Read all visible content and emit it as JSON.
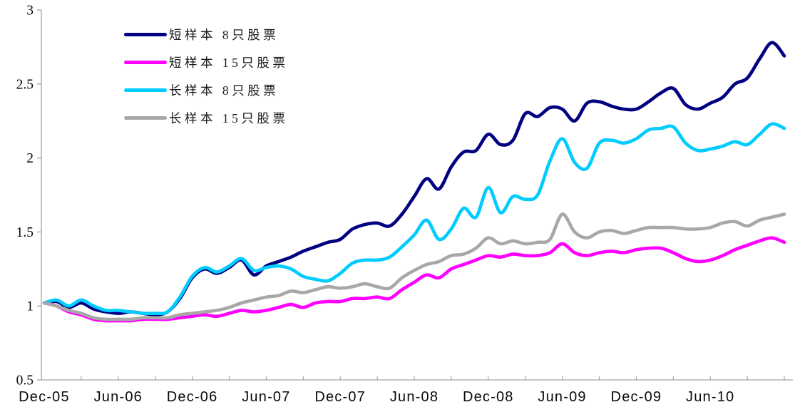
{
  "page": {
    "background": "#ffffff"
  },
  "chart_data": {
    "type": "line",
    "title": "",
    "xlabel": "",
    "ylabel": "",
    "grid": false,
    "legend_position": "top-left-inside",
    "axis_color": "#a3a3a3",
    "text_color": "#0a0a0a",
    "x_axis": {
      "tick_labels": [
        "Dec-05",
        "Jun-06",
        "Dec-06",
        "Jun-07",
        "Dec-07",
        "Jun-08",
        "Dec-08",
        "Jun-09",
        "Dec-09",
        "Jun-10"
      ],
      "label_every_months": 6,
      "minor_tick_every_months": 3,
      "values_start": "Dec-05",
      "values_frequency": "monthly"
    },
    "y_axis": {
      "tick_labels": [
        "0.5",
        "1",
        "1.5",
        "2",
        "2.5",
        "3"
      ],
      "min": 0.5,
      "max": 3,
      "step": 0.5
    },
    "series": [
      {
        "key": "short-8",
        "label": "短样本 8只股票",
        "color": "#000080",
        "values": [
          1.02,
          1.03,
          0.99,
          1.02,
          0.98,
          0.96,
          0.95,
          0.96,
          0.95,
          0.94,
          0.96,
          1.05,
          1.19,
          1.25,
          1.22,
          1.26,
          1.31,
          1.21,
          1.27,
          1.3,
          1.33,
          1.37,
          1.4,
          1.43,
          1.45,
          1.52,
          1.55,
          1.56,
          1.54,
          1.62,
          1.74,
          1.86,
          1.79,
          1.94,
          2.04,
          2.05,
          2.16,
          2.09,
          2.12,
          2.3,
          2.28,
          2.34,
          2.33,
          2.25,
          2.37,
          2.38,
          2.35,
          2.33,
          2.33,
          2.38,
          2.44,
          2.47,
          2.36,
          2.33,
          2.37,
          2.41,
          2.5,
          2.54,
          2.67,
          2.78,
          2.69
        ]
      },
      {
        "key": "short-15",
        "label": "短样本 15只股票",
        "color": "#FF00FF",
        "values": [
          1.02,
          1.0,
          0.96,
          0.94,
          0.91,
          0.9,
          0.9,
          0.9,
          0.91,
          0.91,
          0.91,
          0.92,
          0.93,
          0.94,
          0.93,
          0.95,
          0.97,
          0.96,
          0.97,
          0.99,
          1.01,
          0.99,
          1.02,
          1.03,
          1.03,
          1.05,
          1.05,
          1.06,
          1.05,
          1.11,
          1.16,
          1.21,
          1.19,
          1.25,
          1.28,
          1.31,
          1.34,
          1.33,
          1.35,
          1.34,
          1.34,
          1.36,
          1.42,
          1.36,
          1.34,
          1.36,
          1.37,
          1.36,
          1.38,
          1.39,
          1.39,
          1.36,
          1.32,
          1.3,
          1.31,
          1.34,
          1.38,
          1.41,
          1.44,
          1.46,
          1.43
        ]
      },
      {
        "key": "long-8",
        "label": "长样本 8只股票",
        "color": "#00CCFF",
        "values": [
          1.02,
          1.04,
          1.0,
          1.04,
          1.0,
          0.97,
          0.97,
          0.96,
          0.95,
          0.95,
          0.96,
          1.06,
          1.2,
          1.26,
          1.23,
          1.27,
          1.32,
          1.24,
          1.26,
          1.27,
          1.25,
          1.2,
          1.18,
          1.17,
          1.22,
          1.29,
          1.31,
          1.31,
          1.33,
          1.4,
          1.48,
          1.58,
          1.45,
          1.52,
          1.66,
          1.6,
          1.8,
          1.63,
          1.74,
          1.72,
          1.75,
          1.98,
          2.13,
          1.97,
          1.93,
          2.1,
          2.12,
          2.1,
          2.13,
          2.19,
          2.2,
          2.21,
          2.1,
          2.05,
          2.06,
          2.08,
          2.11,
          2.09,
          2.16,
          2.23,
          2.2
        ]
      },
      {
        "key": "long-15",
        "label": "长样本 15只股票",
        "color": "#A8A8A8",
        "values": [
          1.02,
          1.0,
          0.97,
          0.95,
          0.92,
          0.91,
          0.91,
          0.91,
          0.92,
          0.92,
          0.92,
          0.94,
          0.95,
          0.96,
          0.97,
          0.99,
          1.02,
          1.04,
          1.06,
          1.07,
          1.1,
          1.09,
          1.11,
          1.13,
          1.12,
          1.13,
          1.15,
          1.13,
          1.12,
          1.19,
          1.24,
          1.28,
          1.3,
          1.34,
          1.35,
          1.39,
          1.46,
          1.42,
          1.44,
          1.42,
          1.43,
          1.45,
          1.62,
          1.5,
          1.46,
          1.5,
          1.51,
          1.49,
          1.51,
          1.53,
          1.53,
          1.53,
          1.52,
          1.52,
          1.53,
          1.56,
          1.57,
          1.54,
          1.58,
          1.6,
          1.62
        ]
      }
    ]
  }
}
